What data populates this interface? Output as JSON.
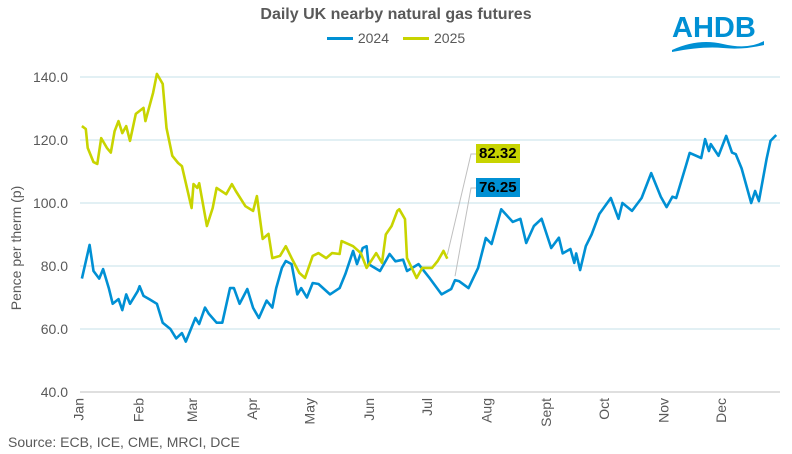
{
  "chart_data": {
    "type": "line",
    "title": "Daily UK nearby natural gas futures",
    "ylabel": "Pence per therm (p)",
    "xlabel": "",
    "ylim": [
      40,
      140
    ],
    "yticks": [
      "40.0",
      "60.0",
      "80.0",
      "100.0",
      "120.0",
      "140.0"
    ],
    "xticks": [
      "Jan",
      "Feb",
      "Mar",
      "Apr",
      "May",
      "Jun",
      "Jul",
      "Aug",
      "Sept",
      "Oct",
      "Nov",
      "Dec"
    ],
    "grid": true,
    "legend_position": "top",
    "series": [
      {
        "name": "2024",
        "color": "#0090D4",
        "last_value_label": "76.25",
        "points": [
          [
            "01-02",
            76
          ],
          [
            "01-06",
            86.7
          ],
          [
            "01-08",
            78.4
          ],
          [
            "01-11",
            76
          ],
          [
            "01-13",
            79
          ],
          [
            "01-16",
            73
          ],
          [
            "01-18",
            68
          ],
          [
            "01-21",
            69.5
          ],
          [
            "01-23",
            66
          ],
          [
            "01-25",
            71
          ],
          [
            "01-27",
            68
          ],
          [
            "01-31",
            72
          ],
          [
            "02-01",
            73.6
          ],
          [
            "02-03",
            70.5
          ],
          [
            "02-06",
            69.5
          ],
          [
            "02-10",
            68
          ],
          [
            "02-13",
            62
          ],
          [
            "02-17",
            60
          ],
          [
            "02-20",
            57
          ],
          [
            "02-23",
            58.7
          ],
          [
            "02-25",
            56
          ],
          [
            "03-02",
            63.5
          ],
          [
            "03-04",
            61.6
          ],
          [
            "03-07",
            66.8
          ],
          [
            "03-09",
            64.8
          ],
          [
            "03-13",
            62
          ],
          [
            "03-16",
            62
          ],
          [
            "03-20",
            73
          ],
          [
            "03-22",
            73
          ],
          [
            "03-25",
            68
          ],
          [
            "03-29",
            72.7
          ],
          [
            "04-01",
            66.7
          ],
          [
            "04-04",
            63.5
          ],
          [
            "04-08",
            69
          ],
          [
            "04-11",
            66.8
          ],
          [
            "04-13",
            73
          ],
          [
            "04-16",
            79.4
          ],
          [
            "04-18",
            81.6
          ],
          [
            "04-21",
            80.6
          ],
          [
            "04-24",
            71
          ],
          [
            "04-26",
            73
          ],
          [
            "04-29",
            70
          ],
          [
            "05-02",
            74.6
          ],
          [
            "05-05",
            74.3
          ],
          [
            "05-11",
            71
          ],
          [
            "05-16",
            73
          ],
          [
            "05-19",
            77.5
          ],
          [
            "05-23",
            84.8
          ],
          [
            "05-25",
            80.6
          ],
          [
            "05-28",
            85.7
          ],
          [
            "05-30",
            86.3
          ],
          [
            "05-31",
            80.6
          ],
          [
            "06-06",
            78.4
          ],
          [
            "06-11",
            83.8
          ],
          [
            "06-14",
            81.5
          ],
          [
            "06-18",
            82
          ],
          [
            "06-20",
            78.4
          ],
          [
            "06-26",
            80.6
          ],
          [
            "07-02",
            76
          ],
          [
            "07-08",
            71
          ],
          [
            "07-13",
            72.7
          ],
          [
            "07-15",
            75.5
          ],
          [
            "07-17",
            75.2
          ],
          [
            "07-22",
            73
          ],
          [
            "07-27",
            79.4
          ],
          [
            "07-31",
            88.9
          ],
          [
            "08-03",
            87
          ],
          [
            "08-08",
            98
          ],
          [
            "08-14",
            94
          ],
          [
            "08-18",
            95
          ],
          [
            "08-21",
            87.3
          ],
          [
            "08-25",
            92.7
          ],
          [
            "08-29",
            95
          ],
          [
            "09-03",
            85.7
          ],
          [
            "09-07",
            89
          ],
          [
            "09-09",
            84
          ],
          [
            "09-13",
            85.4
          ],
          [
            "09-15",
            81
          ],
          [
            "09-16",
            84
          ],
          [
            "09-18",
            78.7
          ],
          [
            "09-21",
            86.3
          ],
          [
            "09-24",
            90
          ],
          [
            "09-28",
            96.5
          ],
          [
            "10-04",
            101.6
          ],
          [
            "10-08",
            95
          ],
          [
            "10-10",
            100
          ],
          [
            "10-15",
            97.5
          ],
          [
            "10-20",
            101.6
          ],
          [
            "10-25",
            109.5
          ],
          [
            "10-30",
            102
          ],
          [
            "11-02",
            98.7
          ],
          [
            "11-05",
            102
          ],
          [
            "11-07",
            101.6
          ],
          [
            "11-12",
            111.7
          ],
          [
            "11-14",
            115.9
          ],
          [
            "11-20",
            114.3
          ],
          [
            "11-22",
            120.3
          ],
          [
            "11-24",
            116.5
          ],
          [
            "11-25",
            118.7
          ],
          [
            "11-29",
            115
          ],
          [
            "12-03",
            121.3
          ],
          [
            "12-06",
            116
          ],
          [
            "12-08",
            115.5
          ],
          [
            "12-11",
            111
          ],
          [
            "12-16",
            100
          ],
          [
            "12-18",
            103.8
          ],
          [
            "12-20",
            100.6
          ],
          [
            "12-24",
            114
          ],
          [
            "12-26",
            119.7
          ],
          [
            "12-29",
            121.6
          ]
        ]
      },
      {
        "name": "2025",
        "color": "#C8D400",
        "last_value_label": "82.32",
        "points": [
          [
            "01-02",
            124.4
          ],
          [
            "01-04",
            123.5
          ],
          [
            "01-05",
            117.5
          ],
          [
            "01-08",
            113
          ],
          [
            "01-10",
            112.4
          ],
          [
            "01-12",
            120.6
          ],
          [
            "01-15",
            117.5
          ],
          [
            "01-17",
            116
          ],
          [
            "01-19",
            122.8
          ],
          [
            "01-21",
            126
          ],
          [
            "01-23",
            122.2
          ],
          [
            "01-25",
            124.4
          ],
          [
            "01-27",
            119.7
          ],
          [
            "01-30",
            128.3
          ],
          [
            "02-03",
            130.2
          ],
          [
            "02-04",
            126
          ],
          [
            "02-08",
            135
          ],
          [
            "02-10",
            141
          ],
          [
            "02-13",
            137.8
          ],
          [
            "02-15",
            123.8
          ],
          [
            "02-18",
            115
          ],
          [
            "02-21",
            112.7
          ],
          [
            "02-23",
            111.7
          ],
          [
            "02-28",
            98.4
          ],
          [
            "03-01",
            106
          ],
          [
            "03-03",
            104.8
          ],
          [
            "03-04",
            106.3
          ],
          [
            "03-08",
            92.7
          ],
          [
            "03-11",
            98.4
          ],
          [
            "03-13",
            104.8
          ],
          [
            "03-18",
            102.8
          ],
          [
            "03-21",
            106
          ],
          [
            "03-23",
            103.8
          ],
          [
            "03-28",
            99
          ],
          [
            "04-01",
            97.5
          ],
          [
            "04-03",
            102.2
          ],
          [
            "04-06",
            88.6
          ],
          [
            "04-09",
            90.2
          ],
          [
            "04-11",
            82.5
          ],
          [
            "04-15",
            83.2
          ],
          [
            "04-18",
            86.3
          ],
          [
            "04-21",
            82.5
          ],
          [
            "04-25",
            77.8
          ],
          [
            "04-28",
            76.2
          ],
          [
            "05-02",
            83.2
          ],
          [
            "05-05",
            84.1
          ],
          [
            "05-09",
            82.5
          ],
          [
            "05-12",
            84.1
          ],
          [
            "05-16",
            83.8
          ],
          [
            "05-17",
            87.9
          ],
          [
            "05-23",
            86.3
          ],
          [
            "05-27",
            84.1
          ],
          [
            "05-30",
            79.4
          ],
          [
            "06-04",
            84.1
          ],
          [
            "06-07",
            81
          ],
          [
            "06-09",
            90
          ],
          [
            "06-12",
            92.7
          ],
          [
            "06-15",
            97.5
          ],
          [
            "06-16",
            98
          ],
          [
            "06-19",
            94.9
          ],
          [
            "06-20",
            82.5
          ],
          [
            "06-25",
            76.2
          ],
          [
            "06-28",
            79.4
          ],
          [
            "07-03",
            79.4
          ],
          [
            "07-06",
            81.6
          ],
          [
            "07-09",
            84.8
          ],
          [
            "07-11",
            82.32
          ]
        ]
      }
    ]
  },
  "source": "Source: ECB, ICE, CME, MRCI, DCE",
  "logo_text": "AHDB"
}
